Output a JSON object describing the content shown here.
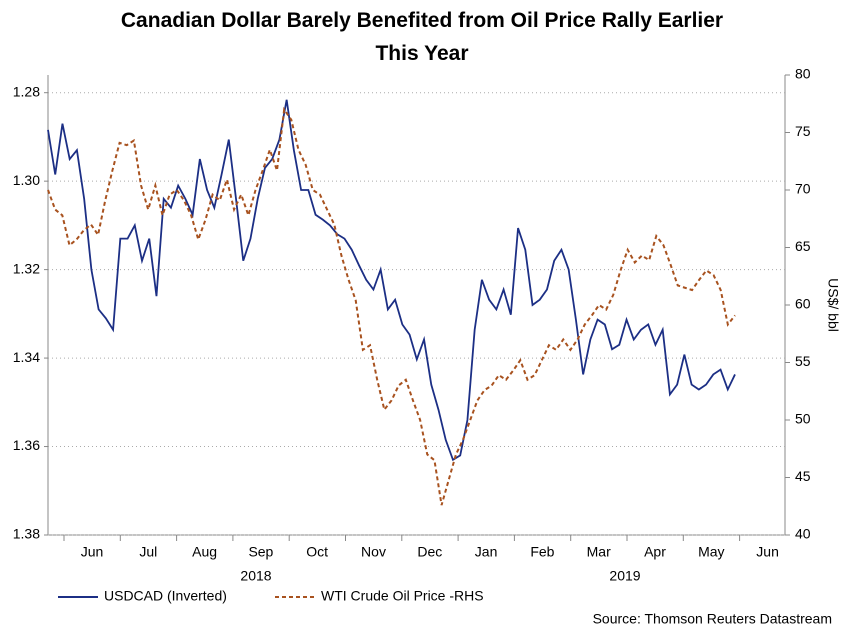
{
  "chart_data": {
    "type": "line",
    "title": "Canadian Dollar Barely Benefited from Oil Price Rally Earlier This Year",
    "y2_label": "US$/ bbl",
    "source": "Source: Thomson Reuters Datastream",
    "x_tick_labels": [
      "Jun",
      "Jul",
      "Aug",
      "Sep",
      "Oct",
      "Nov",
      "Dec",
      "Jan",
      "Feb",
      "Mar",
      "Apr",
      "May",
      "Jun"
    ],
    "year_labels": [
      "2018",
      "2019"
    ],
    "ylim": [
      1.38,
      1.276
    ],
    "yticks": [
      {
        "value": 1.38,
        "label": "1.38"
      },
      1.36,
      1.34,
      1.32,
      {
        "value": 1.3,
        "label": "1.30"
      },
      1.28
    ],
    "y2lim": [
      40,
      80
    ],
    "y2ticks": [
      40,
      45,
      50,
      55,
      60,
      65,
      70,
      75,
      80
    ],
    "grid": true,
    "series": [
      {
        "name": "USDCAD (Inverted)",
        "color": "#1c2f85",
        "dash": false,
        "values": [
          1.2884,
          1.2985,
          1.287,
          1.295,
          1.293,
          1.304,
          1.32,
          1.329,
          1.331,
          1.3336,
          1.313,
          1.313,
          1.31,
          1.318,
          1.313,
          1.326,
          1.304,
          1.306,
          1.301,
          1.304,
          1.3076,
          1.295,
          1.302,
          1.306,
          1.2985,
          1.2906,
          1.304,
          1.318,
          1.313,
          1.304,
          1.297,
          1.295,
          1.2906,
          1.2816,
          1.293,
          1.302,
          1.302,
          1.3076,
          1.3087,
          1.31,
          1.312,
          1.313,
          1.3155,
          1.319,
          1.3223,
          1.3245,
          1.32,
          1.329,
          1.3268,
          1.3324,
          1.3347,
          1.3403,
          1.3358,
          1.346,
          1.3517,
          1.3585,
          1.363,
          1.362,
          1.354,
          1.3336,
          1.3223,
          1.3268,
          1.329,
          1.3245,
          1.3302,
          1.3106,
          1.3155,
          1.328,
          1.3268,
          1.3245,
          1.318,
          1.3155,
          1.32,
          1.3313,
          1.3437,
          1.3358,
          1.3313,
          1.3324,
          1.338,
          1.337,
          1.3313,
          1.3358,
          1.3336,
          1.3324,
          1.337,
          1.3336,
          1.3482,
          1.346,
          1.3392,
          1.346,
          1.3471,
          1.346,
          1.3437,
          1.3426,
          1.3471,
          1.3437
        ]
      },
      {
        "name": "WTI Crude Oil Price -RHS",
        "color": "#a8521f",
        "dash": true,
        "axis": "y2",
        "values": [
          70,
          68.3,
          67.8,
          65.2,
          65.7,
          66.5,
          67,
          66.1,
          69.1,
          71.7,
          74.1,
          73.9,
          74.3,
          70.4,
          68.3,
          70.4,
          67.8,
          69.6,
          70,
          69.1,
          67.8,
          65.7,
          67.4,
          69.6,
          69.1,
          70.9,
          68.3,
          69.6,
          67.8,
          70,
          71.7,
          73.5,
          71.7,
          77,
          76.1,
          73.5,
          72.2,
          70,
          69.6,
          68.3,
          67,
          64.3,
          62.2,
          60.4,
          56.1,
          56.5,
          53.5,
          50.9,
          51.7,
          53,
          53.5,
          51.7,
          50,
          47,
          46.5,
          42.6,
          44.8,
          47,
          48.3,
          50,
          51.7,
          52.6,
          53,
          53.9,
          53.5,
          54.3,
          55.2,
          53.5,
          53.9,
          55.2,
          56.5,
          56.1,
          57,
          56.1,
          57,
          58.3,
          59.1,
          60,
          59.6,
          60.9,
          63,
          64.8,
          63.7,
          64.3,
          63.9,
          66,
          65.2,
          63.5,
          61.7,
          61.5,
          61.3,
          62.2,
          63,
          62.6,
          61.3,
          58.3,
          59.1
        ]
      }
    ]
  }
}
